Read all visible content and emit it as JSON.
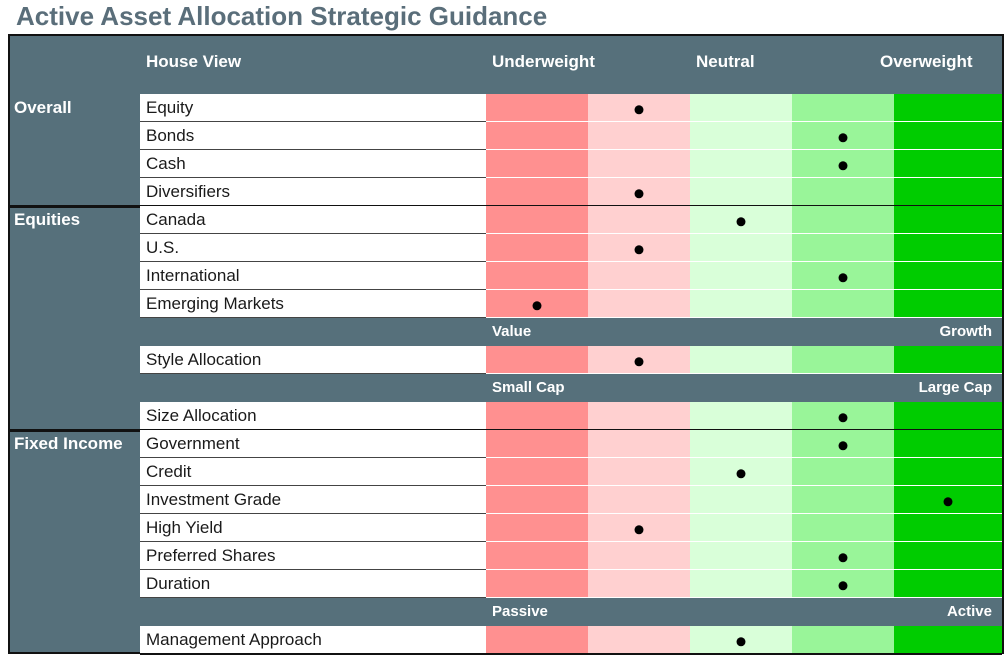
{
  "title": "Active Asset Allocation Strategic Guidance",
  "header": {
    "house_view": "House View",
    "underweight": "Underweight",
    "neutral": "Neutral",
    "overweight": "Overweight"
  },
  "colors": {
    "level_1": "#ff9090",
    "level_2": "#ffd0d0",
    "level_3": "#d9ffd9",
    "level_4": "#99f599",
    "level_5": "#00cc00",
    "header_bg": "#56707b"
  },
  "rows": [
    {
      "section": "Overall",
      "label": "Equity",
      "level": 2
    },
    {
      "label": "Bonds",
      "level": 4
    },
    {
      "label": "Cash",
      "level": 4
    },
    {
      "label": "Diversifiers",
      "level": 2
    },
    {
      "section": "Equities",
      "label": "Canada",
      "level": 3
    },
    {
      "label": "U.S.",
      "level": 2
    },
    {
      "label": "International",
      "level": 4
    },
    {
      "label": "Emerging Markets",
      "level": 1
    },
    {
      "subheader": {
        "left": "Value",
        "right": "Growth"
      }
    },
    {
      "label": "Style Allocation",
      "level": 2
    },
    {
      "subheader": {
        "left": "Small Cap",
        "right": "Large Cap"
      }
    },
    {
      "label": "Size Allocation",
      "level": 4
    },
    {
      "section": "Fixed Income",
      "label": "Government",
      "level": 4
    },
    {
      "label": "Credit",
      "level": 3
    },
    {
      "label": "Investment Grade",
      "level": 5
    },
    {
      "label": "High Yield",
      "level": 2
    },
    {
      "label": "Preferred Shares",
      "level": 4
    },
    {
      "label": "Duration",
      "level": 4
    },
    {
      "subheader": {
        "left": "Passive",
        "right": "Active"
      }
    },
    {
      "label": "Management Approach",
      "level": 3
    }
  ]
}
